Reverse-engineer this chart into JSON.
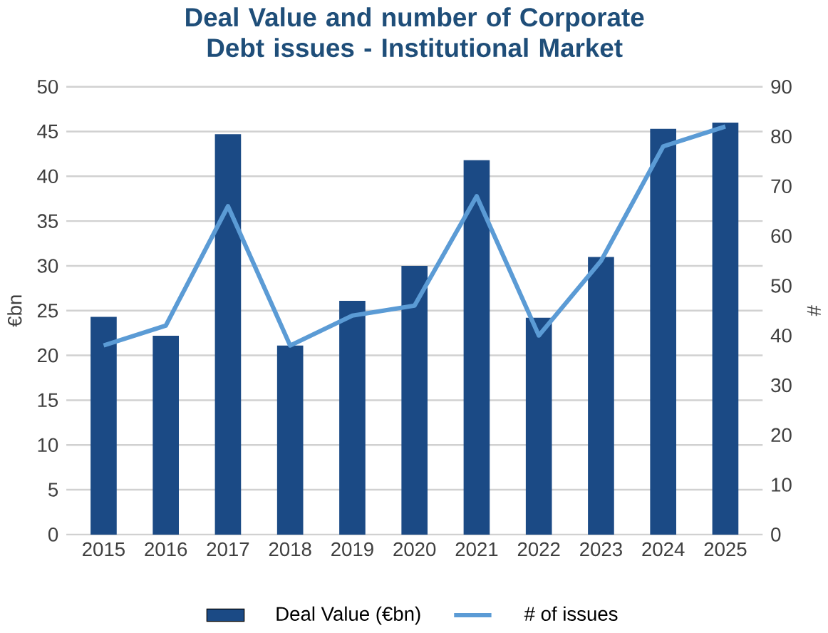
{
  "chart_data": {
    "type": "bar",
    "title": "Deal Value and number of Corporate Debt issues - Institutional Market",
    "categories": [
      "2015",
      "2016",
      "2017",
      "2018",
      "2019",
      "2020",
      "2021",
      "2022",
      "2023",
      "2024",
      "2025"
    ],
    "series": [
      {
        "name": "Deal Value (€bn)",
        "color": "#1b4a85",
        "values": [
          24.3,
          22.2,
          44.7,
          21.1,
          26.1,
          30.0,
          41.8,
          24.2,
          31.0,
          45.3,
          46.0
        ]
      },
      {
        "name": "# of issues",
        "type": "line",
        "axis": "y2",
        "color": "#5b9bd5",
        "values": [
          38,
          42,
          66,
          38,
          44,
          46,
          68,
          40,
          55,
          78,
          82
        ]
      }
    ],
    "ylabel": "€bn",
    "y2label": "#",
    "ylim": [
      0,
      50
    ],
    "yticks": [
      0,
      5,
      10,
      15,
      20,
      25,
      30,
      35,
      40,
      45,
      50
    ],
    "y2lim": [
      0,
      90
    ],
    "y2ticks": [
      0,
      10,
      20,
      30,
      40,
      50,
      60,
      70,
      80,
      90
    ],
    "grid": "y",
    "legend": "bottom"
  }
}
